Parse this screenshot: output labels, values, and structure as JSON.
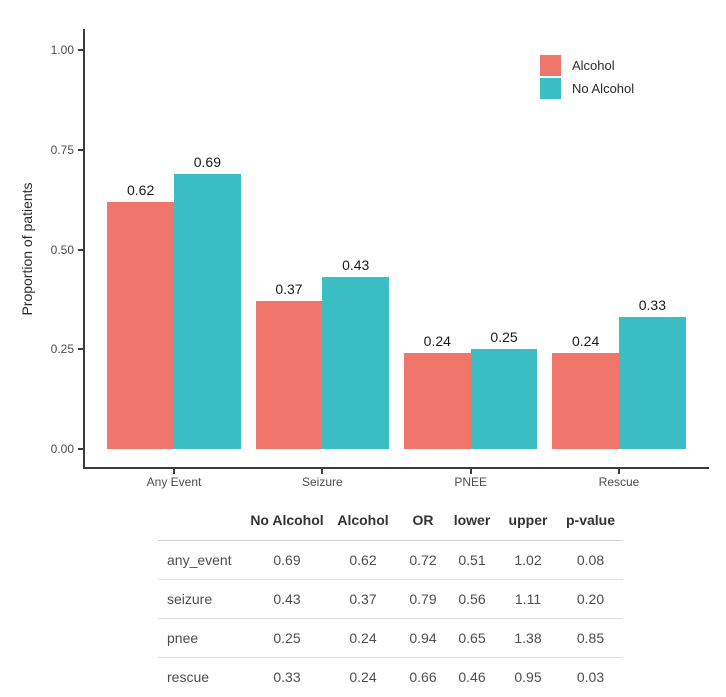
{
  "chart_data": {
    "type": "bar",
    "title": "",
    "xlabel": "",
    "ylabel": "Proportion of patients",
    "categories": [
      "Any Event",
      "Seizure",
      "PNEE",
      "Rescue"
    ],
    "series": [
      {
        "name": "Alcohol",
        "color": "#F0766B",
        "values": [
          0.62,
          0.37,
          0.24,
          0.24
        ]
      },
      {
        "name": "No Alcohol",
        "color": "#3ABEC3",
        "values": [
          0.69,
          0.43,
          0.25,
          0.33
        ]
      }
    ],
    "ylim": [
      0,
      1
    ],
    "yticks": [
      0,
      0.25,
      0.5,
      0.75,
      1
    ],
    "ytick_labels": [
      "0.00",
      "0.25",
      "0.50",
      "0.75",
      "1.00"
    ],
    "bar_value_label_format": "2dp",
    "grid": false,
    "legend_position": "top-right"
  },
  "table": {
    "columns": [
      "",
      "No Alcohol",
      "Alcohol",
      "OR",
      "lower",
      "upper",
      "p-value"
    ],
    "rows": [
      {
        "label": "any_event",
        "values": [
          "0.69",
          "0.62",
          "0.72",
          "0.51",
          "1.02",
          "0.08"
        ]
      },
      {
        "label": "seizure",
        "values": [
          "0.43",
          "0.37",
          "0.79",
          "0.56",
          "1.11",
          "0.20"
        ]
      },
      {
        "label": "pnee",
        "values": [
          "0.25",
          "0.24",
          "0.94",
          "0.65",
          "1.38",
          "0.85"
        ]
      },
      {
        "label": "rescue",
        "values": [
          "0.33",
          "0.24",
          "0.66",
          "0.46",
          "0.95",
          "0.03"
        ]
      }
    ]
  },
  "colors": {
    "alcohol": "#F0766B",
    "no_alcohol": "#3ABEC3",
    "axis_line": "#3C3C3C",
    "axis_text": "#4D4D4D",
    "table_rule": "#DCDCDC"
  }
}
